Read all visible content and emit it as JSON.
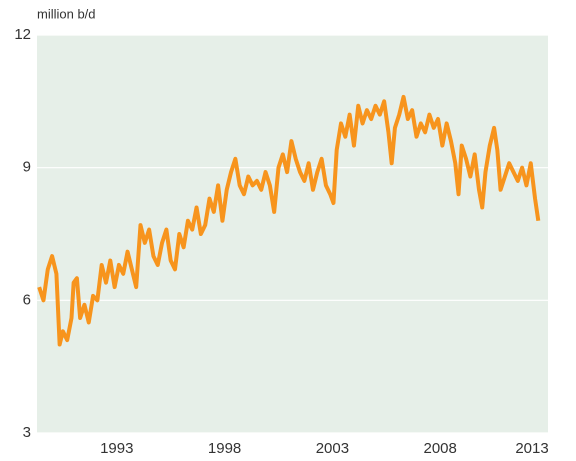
{
  "chart_data": {
    "type": "line",
    "y_label": "million b/d",
    "x": [
      1989.4,
      1989.6,
      1989.8,
      1990.0,
      1990.2,
      1990.35,
      1990.5,
      1990.7,
      1990.9,
      1991.0,
      1991.15,
      1991.3,
      1991.5,
      1991.7,
      1991.9,
      1992.1,
      1992.3,
      1992.5,
      1992.7,
      1992.9,
      1993.1,
      1993.3,
      1993.5,
      1993.7,
      1993.9,
      1994.1,
      1994.3,
      1994.5,
      1994.7,
      1994.9,
      1995.1,
      1995.3,
      1995.5,
      1995.7,
      1995.9,
      1996.1,
      1996.3,
      1996.5,
      1996.7,
      1996.9,
      1997.1,
      1997.3,
      1997.5,
      1997.7,
      1997.9,
      1998.1,
      1998.3,
      1998.5,
      1998.7,
      1998.9,
      1999.1,
      1999.3,
      1999.5,
      1999.7,
      1999.9,
      2000.1,
      2000.3,
      2000.5,
      2000.7,
      2000.9,
      2001.1,
      2001.3,
      2001.5,
      2001.7,
      2001.9,
      2002.1,
      2002.3,
      2002.5,
      2002.7,
      2002.9,
      2003.05,
      2003.2,
      2003.4,
      2003.6,
      2003.8,
      2004.0,
      2004.2,
      2004.4,
      2004.6,
      2004.8,
      2005.0,
      2005.2,
      2005.4,
      2005.6,
      2005.75,
      2005.9,
      2006.1,
      2006.3,
      2006.5,
      2006.7,
      2006.9,
      2007.1,
      2007.3,
      2007.5,
      2007.7,
      2007.9,
      2008.1,
      2008.3,
      2008.5,
      2008.7,
      2008.85,
      2009.0,
      2009.2,
      2009.4,
      2009.6,
      2009.8,
      2009.95,
      2010.1,
      2010.3,
      2010.5,
      2010.65,
      2010.8,
      2011.0,
      2011.2,
      2011.4,
      2011.6,
      2011.8,
      2012.0,
      2012.2,
      2012.4,
      2012.55
    ],
    "values": [
      6.3,
      6.0,
      6.7,
      7.0,
      6.6,
      5.0,
      5.3,
      5.1,
      5.6,
      6.4,
      6.5,
      5.6,
      5.9,
      5.5,
      6.1,
      6.0,
      6.8,
      6.4,
      6.9,
      6.3,
      6.8,
      6.6,
      7.1,
      6.7,
      6.3,
      7.7,
      7.3,
      7.6,
      7.0,
      6.8,
      7.3,
      7.6,
      6.9,
      6.7,
      7.5,
      7.2,
      7.8,
      7.6,
      8.1,
      7.5,
      7.7,
      8.3,
      8.0,
      8.6,
      7.8,
      8.5,
      8.9,
      9.2,
      8.6,
      8.4,
      8.8,
      8.6,
      8.7,
      8.5,
      8.9,
      8.6,
      8.0,
      9.0,
      9.3,
      8.9,
      9.6,
      9.2,
      8.9,
      8.7,
      9.1,
      8.5,
      8.9,
      9.2,
      8.6,
      8.4,
      8.2,
      9.4,
      10.0,
      9.7,
      10.2,
      9.5,
      10.4,
      10.0,
      10.3,
      10.1,
      10.4,
      10.2,
      10.5,
      9.8,
      9.1,
      9.9,
      10.2,
      10.6,
      10.1,
      10.3,
      9.7,
      10.0,
      9.8,
      10.2,
      9.9,
      10.1,
      9.5,
      10.0,
      9.6,
      9.1,
      8.4,
      9.5,
      9.2,
      8.8,
      9.3,
      8.5,
      8.1,
      8.9,
      9.5,
      9.9,
      9.4,
      8.5,
      8.8,
      9.1,
      8.9,
      8.7,
      9.0,
      8.6,
      9.1,
      8.3,
      7.8
    ],
    "color": "#f7941d",
    "background": "#e6efe8",
    "grid": true,
    "xlim": [
      1989.3,
      2013
    ],
    "xticks": [
      1993,
      1998,
      2003,
      2008,
      2013
    ],
    "ylim": [
      3,
      12
    ],
    "yticks": [
      3,
      6,
      9,
      12
    ]
  }
}
